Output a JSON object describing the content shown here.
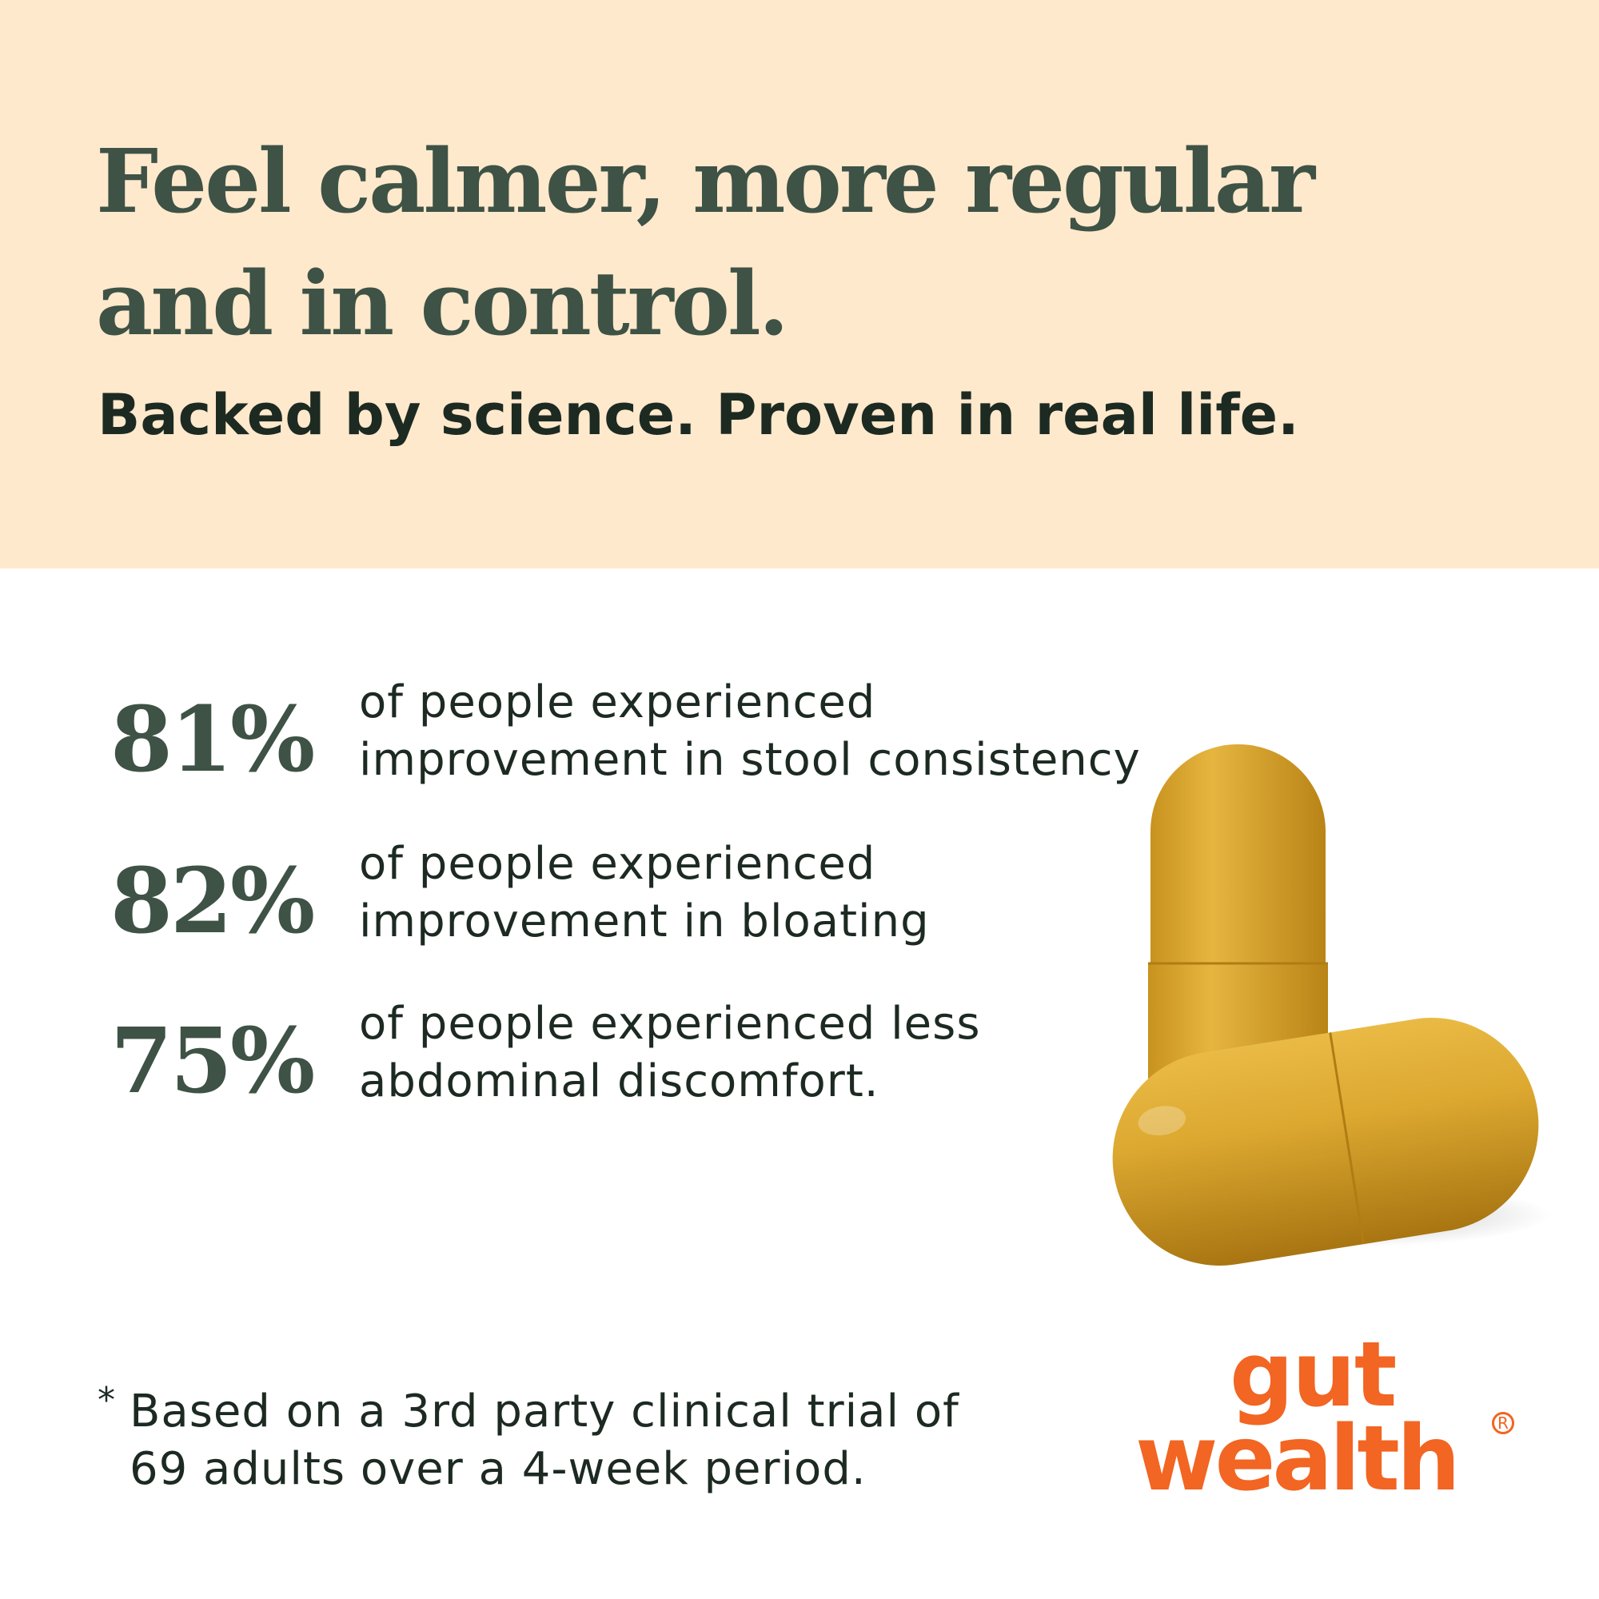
{
  "colors": {
    "band": "#FFE9CC",
    "green": "#3E5246",
    "orange": "#F26522",
    "capsule": "#D9A72E"
  },
  "header": {
    "headline_line1": "Feel calmer, more regular",
    "headline_line2": "and in control.",
    "subtitle": "Backed by science. Proven in real life."
  },
  "stats": [
    {
      "value": "81%",
      "line1": "of people experienced",
      "line2": "improvement in stool consistency"
    },
    {
      "value": "82%",
      "line1": "of people experienced",
      "line2": "improvement in bloating"
    },
    {
      "value": "75%",
      "line1": "of people experienced less",
      "line2": "abdominal discomfort."
    }
  ],
  "footnote": {
    "marker": "*",
    "line1": "Based on a 3rd party clinical trial of",
    "line2": "69 adults over a 4-week period."
  },
  "logo": {
    "line1": "gut",
    "line2": "wealth",
    "registered": "R"
  },
  "image": {
    "icon": "capsules-image"
  }
}
